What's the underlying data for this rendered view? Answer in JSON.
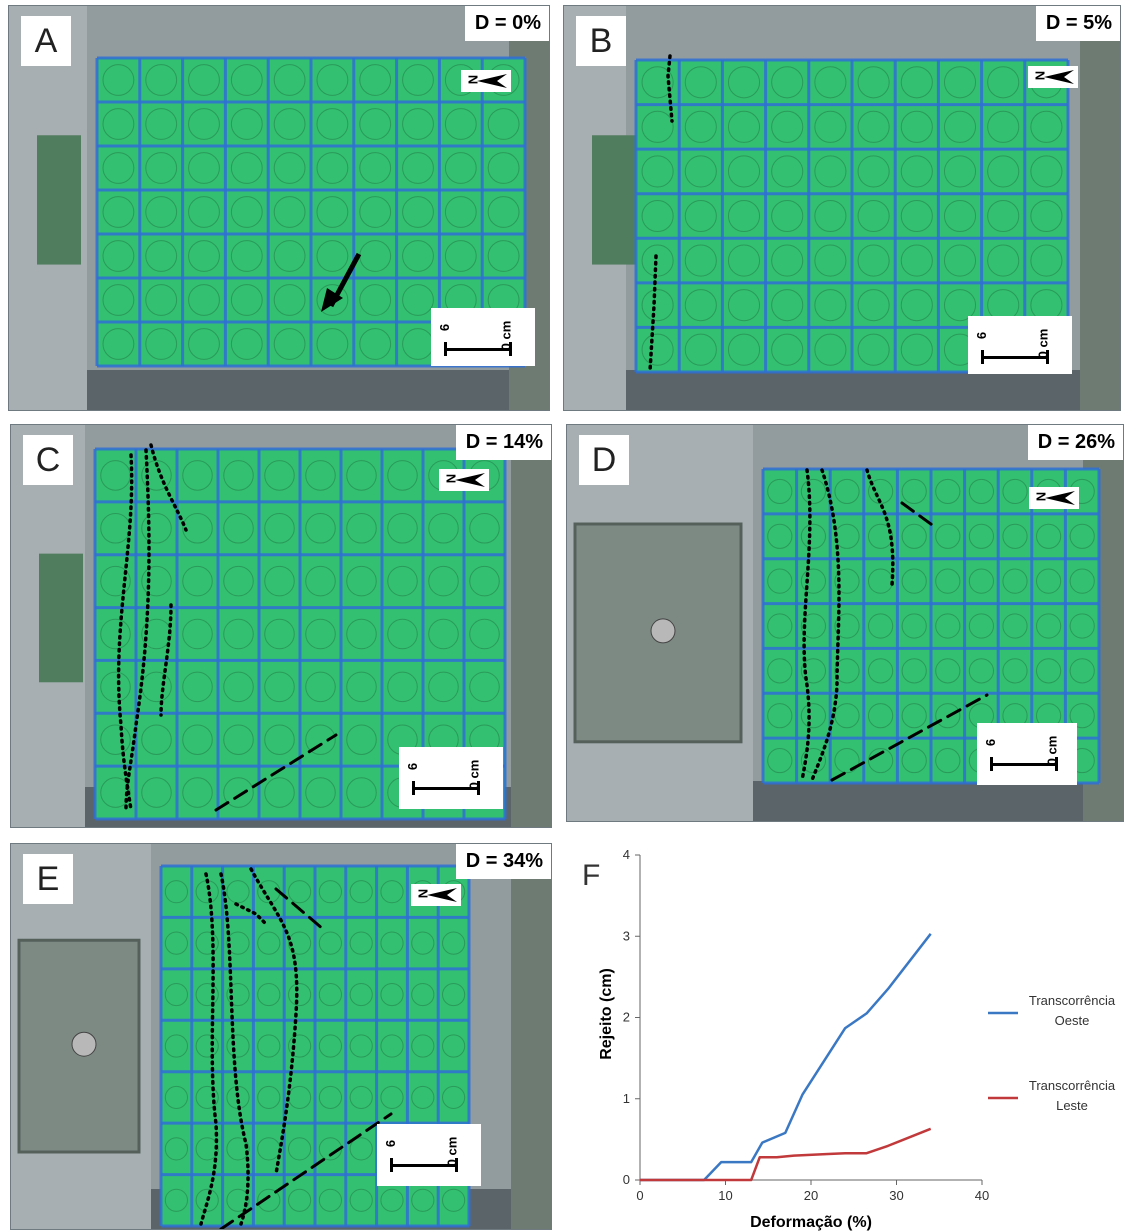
{
  "panels": [
    {
      "letter": "A",
      "deformation": "D = 0%"
    },
    {
      "letter": "B",
      "deformation": "D = 5%"
    },
    {
      "letter": "C",
      "deformation": "D = 14%"
    },
    {
      "letter": "D",
      "deformation": "D = 26%"
    },
    {
      "letter": "E",
      "deformation": "D = 34%"
    }
  ],
  "north_label": "N",
  "scale": {
    "left": "6",
    "right": "0 cm"
  },
  "colors": {
    "sand": "#33c070",
    "grid": "#2f6fd6",
    "glass": "#8b9498",
    "west": "#3b78c4",
    "east": "#c1393b"
  },
  "chart_data": {
    "type": "line",
    "panel_label": "F",
    "xlabel": "Deformação (%)",
    "ylabel": "Rejeito (cm)",
    "xlim": [
      0,
      40
    ],
    "ylim": [
      0,
      4
    ],
    "xticks": [
      "0",
      "10",
      "20",
      "30",
      "40"
    ],
    "yticks": [
      "0",
      "1",
      "2",
      "3",
      "4"
    ],
    "legend_position": "right",
    "series": [
      {
        "name": "Transcorrência\nOeste",
        "name_lines": [
          "Transcorrência",
          "Oeste"
        ],
        "color": "#3b78c4",
        "x": [
          0,
          7.5,
          9.5,
          13,
          14.3,
          17,
          19,
          24,
          26.5,
          29,
          34
        ],
        "y": [
          0,
          0,
          0.22,
          0.22,
          0.46,
          0.58,
          1.05,
          1.87,
          2.05,
          2.35,
          3.03
        ]
      },
      {
        "name": "Transcorrência\nLeste",
        "name_lines": [
          "Transcorrência",
          "Leste"
        ],
        "color": "#c1393b",
        "x": [
          0,
          13,
          14,
          16,
          18,
          22,
          24,
          26.5,
          29,
          34
        ],
        "y": [
          0,
          0,
          0.28,
          0.28,
          0.3,
          0.32,
          0.33,
          0.33,
          0.42,
          0.63
        ]
      }
    ]
  }
}
